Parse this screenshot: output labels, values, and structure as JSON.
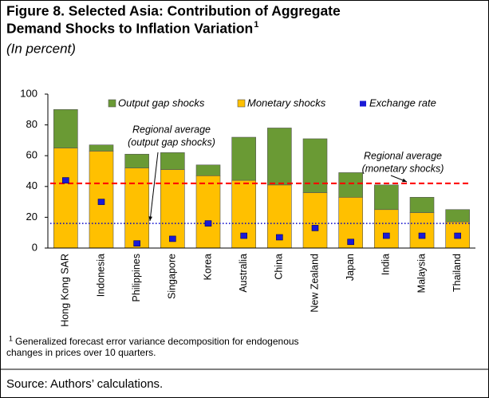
{
  "chart_data": {
    "type": "bar",
    "stacked": true,
    "title_lines": [
      "Figure 8. Selected Asia: Contribution of Aggregate",
      "Demand Shocks to Inflation Variation"
    ],
    "title_note": "1",
    "subtitle": "(In percent)",
    "categories": [
      "Hong Kong SAR",
      "Indonesia",
      "Philippines",
      "Singapore",
      "Korea",
      "Australia",
      "China",
      "New Zealand",
      "Japan",
      "India",
      "Malaysia",
      "Thailand"
    ],
    "series": [
      {
        "name": "Output gap shocks",
        "type": "bar",
        "color": "#6a9a34",
        "values": [
          25,
          4,
          9,
          11,
          7,
          28,
          37,
          35,
          16,
          16,
          10,
          8
        ]
      },
      {
        "name": "Monetary shocks",
        "type": "bar",
        "color": "#ffc000",
        "values": [
          65,
          63,
          52,
          51,
          47,
          44,
          41,
          36,
          33,
          25,
          23,
          17
        ]
      },
      {
        "name": "Exchange rate",
        "type": "scatter",
        "color": "#1a1ad6",
        "values": [
          44,
          30,
          3,
          6,
          16,
          8,
          7,
          13,
          4,
          8,
          8,
          8
        ]
      }
    ],
    "reference_lines": [
      {
        "value": 16,
        "color": "#0000cc",
        "style": "dotted",
        "label_lines": [
          "Regional average",
          "(output gap shocks)"
        ]
      },
      {
        "value": 42,
        "color": "#ff0000",
        "style": "dashed",
        "label_lines": [
          "Regional average",
          "(monetary shocks)"
        ]
      }
    ],
    "ylim": [
      0,
      100
    ],
    "yticks": [
      0,
      20,
      40,
      60,
      80,
      100
    ],
    "grid": false,
    "legend": "top-right",
    "footnote_mark": "1",
    "footnote_lines": [
      "Generalized forecast error variance decomposition for endogenous",
      "changes in prices over 10 quarters."
    ],
    "source": "Source: Authors’ calculations."
  }
}
